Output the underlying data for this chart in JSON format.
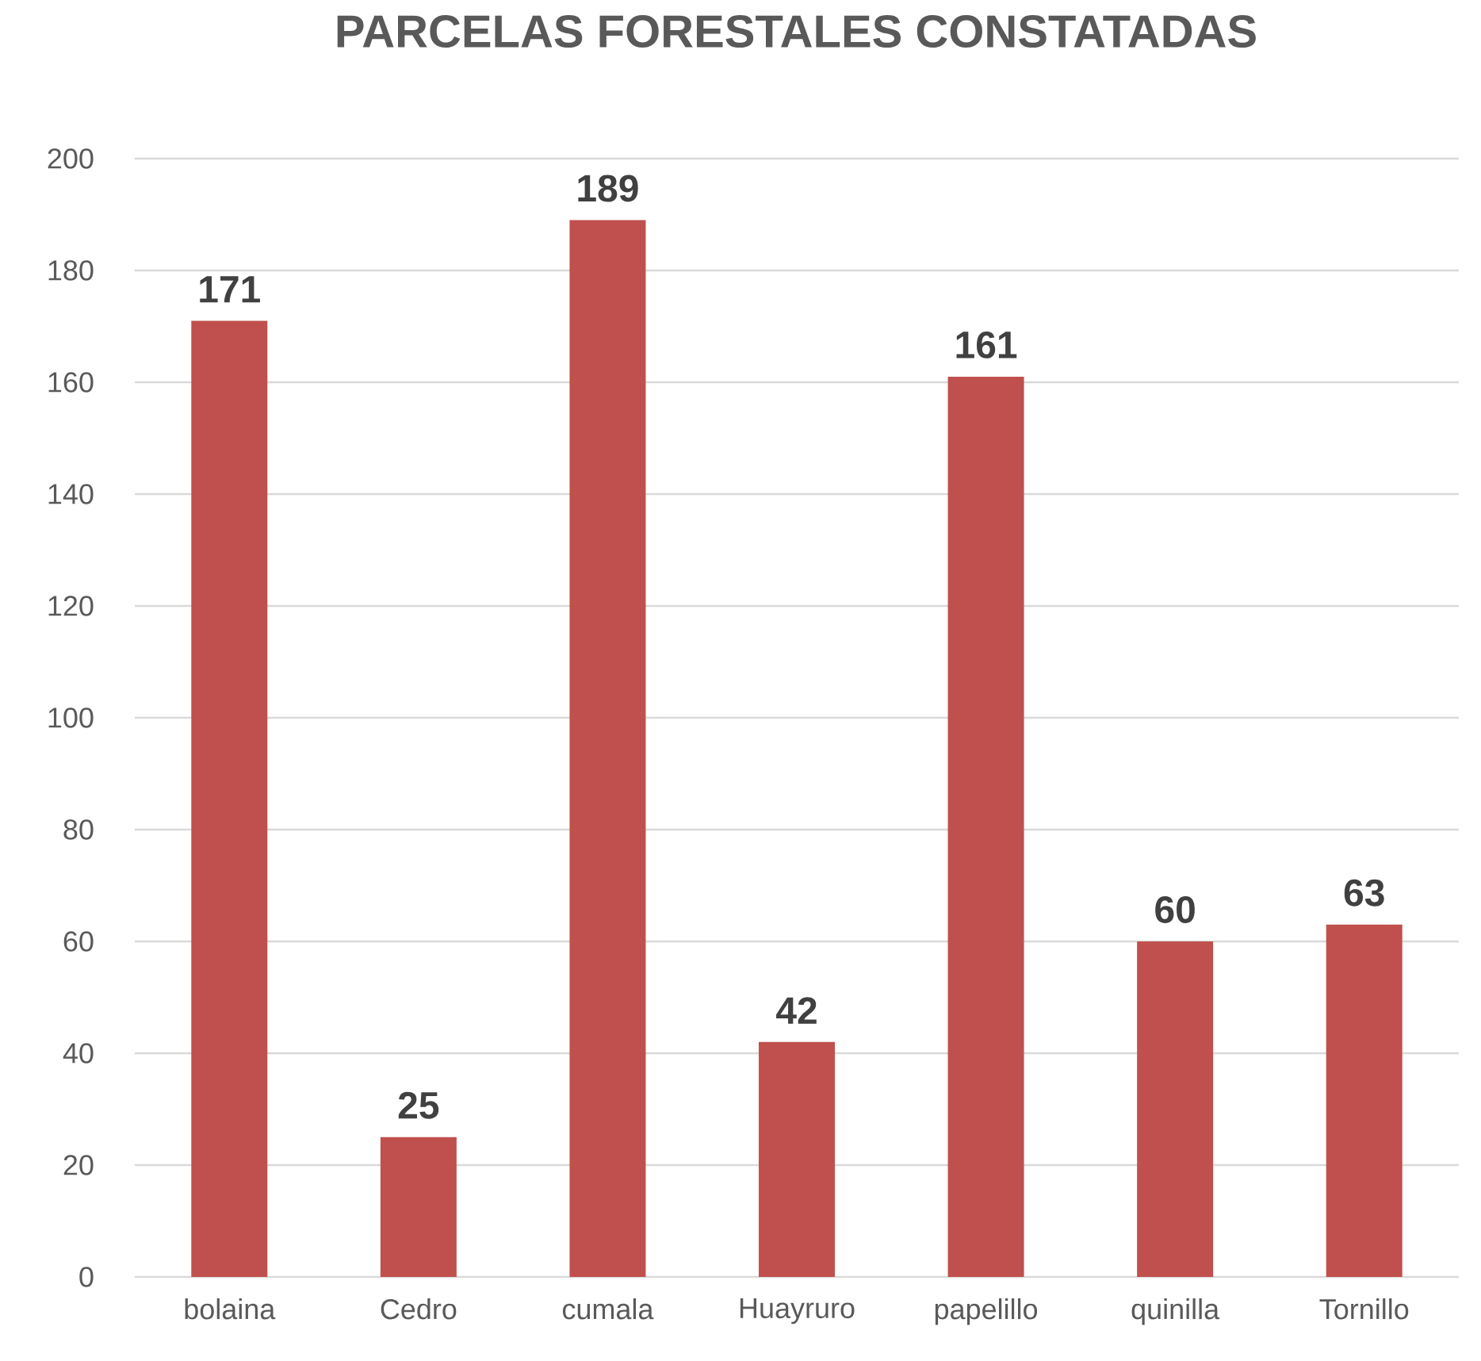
{
  "chart_data": {
    "type": "bar",
    "title": "PARCELAS FORESTALES CONSTATADAS",
    "categories": [
      "bolaina",
      "Cedro",
      "cumala",
      "Huayruro",
      "papelillo",
      "quinilla",
      "Tornillo"
    ],
    "values": [
      171,
      25,
      189,
      42,
      161,
      60,
      63
    ],
    "color": "#c0504d",
    "ylim": [
      0,
      200
    ],
    "yticks": [
      0,
      20,
      40,
      60,
      80,
      100,
      120,
      140,
      160,
      180,
      200
    ],
    "grid": "y",
    "data_labels": true
  }
}
